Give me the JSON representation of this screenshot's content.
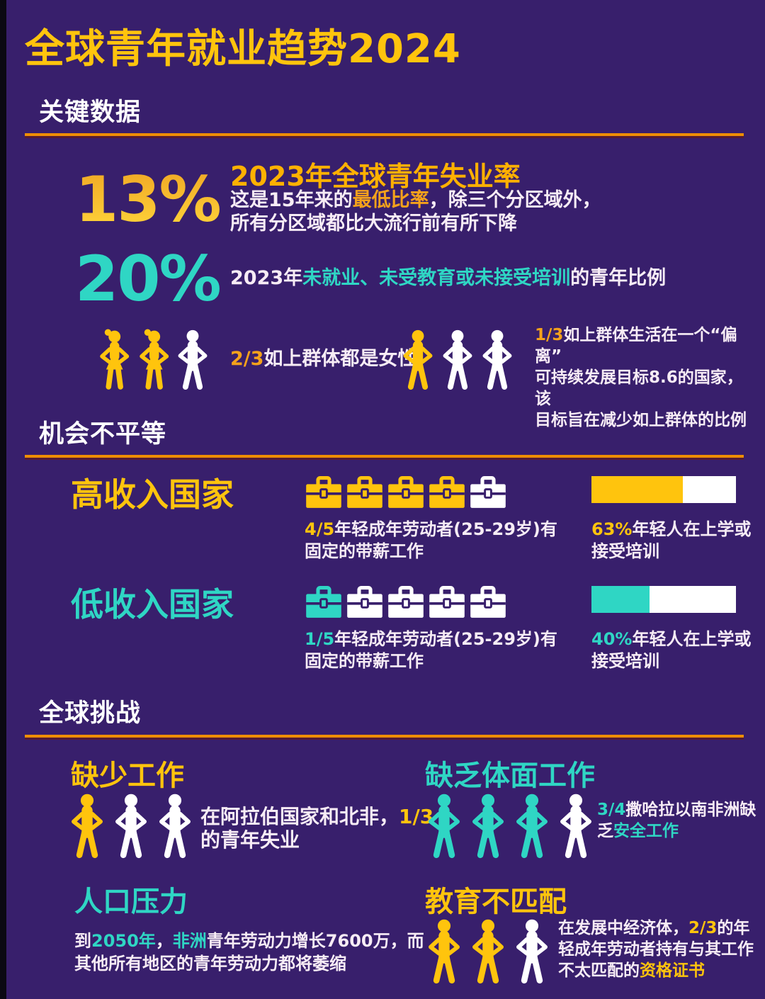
{
  "title": "全球青年就业趋势2024",
  "colors": {
    "background": "#381F6C",
    "gold": "#FFC40D",
    "orange": "#F5A21B",
    "teal": "#2FD6C4",
    "white": "#FFFFFF",
    "rule_orange": "#EE8E04"
  },
  "key_data": {
    "heading": "关键数据",
    "unemployment": {
      "value": "13%",
      "headline": "2023年全球青年失业率",
      "l1_pre": "这是15年来的",
      "l1_hl": "最低比率",
      "l1_post": "，除三个分区域外，",
      "l2": "所有分区域都比大流行前有所下降"
    },
    "neet": {
      "value": "20%",
      "pre": "2023年",
      "hl": "未就业、未受教育或未接受培训",
      "post": "的青年比例"
    },
    "female_row": {
      "hl": "2/3",
      "text": "如上群体都是女性",
      "icons": [
        {
          "glyph": "female",
          "color": "gold"
        },
        {
          "glyph": "female",
          "color": "gold"
        },
        {
          "glyph": "male",
          "color": "white"
        }
      ]
    },
    "sdg_row": {
      "hl": "1/3",
      "l1": "如上群体生活在一个“偏离”",
      "l2": "可持续发展目标8.6的国家，该",
      "l3": "目标旨在减少如上群体的比例",
      "icons": [
        {
          "glyph": "male",
          "color": "gold"
        },
        {
          "glyph": "male",
          "color": "white"
        },
        {
          "glyph": "male",
          "color": "white"
        }
      ]
    }
  },
  "opportunity": {
    "heading": "机会不平等",
    "high_income": {
      "label": "高收入国家",
      "briefcases": [
        {
          "glyph": "briefcase",
          "color": "gold"
        },
        {
          "glyph": "briefcase",
          "color": "gold"
        },
        {
          "glyph": "briefcase",
          "color": "gold"
        },
        {
          "glyph": "briefcase",
          "color": "gold"
        },
        {
          "glyph": "briefcase",
          "color": "white"
        }
      ],
      "caption_hl": "4/5",
      "caption_l1": "年轻成年劳动者(25-29岁)有",
      "caption_l2": "固定的带薪工作",
      "bar": {
        "percent": 63,
        "color": "gold"
      },
      "bar_hl": "63%",
      "bar_l1": "年轻人在上学或",
      "bar_l2": "接受培训"
    },
    "low_income": {
      "label": "低收入国家",
      "briefcases": [
        {
          "glyph": "briefcase",
          "color": "teal"
        },
        {
          "glyph": "briefcase",
          "color": "white"
        },
        {
          "glyph": "briefcase",
          "color": "white"
        },
        {
          "glyph": "briefcase",
          "color": "white"
        },
        {
          "glyph": "briefcase",
          "color": "white"
        }
      ],
      "caption_hl": "1/5",
      "caption_l1": "年轻成年劳动者(25-29岁)有",
      "caption_l2": "固定的带薪工作",
      "bar": {
        "percent": 40,
        "color": "teal"
      },
      "bar_hl": "40%",
      "bar_l1": "年轻人在上学或",
      "bar_l2": "接受培训"
    }
  },
  "challenges": {
    "heading": "全球挑战",
    "lack_of_jobs": {
      "label": "缺少工作",
      "icons": [
        {
          "glyph": "male",
          "color": "gold"
        },
        {
          "glyph": "male",
          "color": "white"
        },
        {
          "glyph": "male",
          "color": "white"
        }
      ],
      "l1_pre": "在阿拉伯国家和北非，",
      "l1_hl": "1/3",
      "l2": "的青年失业"
    },
    "decent_work": {
      "label": "缺乏体面工作",
      "icons": [
        {
          "glyph": "male",
          "color": "teal"
        },
        {
          "glyph": "male",
          "color": "teal"
        },
        {
          "glyph": "male",
          "color": "teal"
        },
        {
          "glyph": "male",
          "color": "white"
        }
      ],
      "l1_hl": "3/4",
      "l1": "撒哈拉以南非洲缺",
      "l2_pre": "乏",
      "l2_hl": "安全工作"
    },
    "population": {
      "label": "人口压力",
      "pre": "到",
      "hl_year": "2050年",
      "comma": "，",
      "hl_region": "非洲",
      "l1_post": "青年劳动力增长7600万，而",
      "l2": "其他所有地区的青年劳动力都将萎缩"
    },
    "education": {
      "label": "教育不匹配",
      "icons": [
        {
          "glyph": "male",
          "color": "gold"
        },
        {
          "glyph": "male",
          "color": "gold"
        },
        {
          "glyph": "male",
          "color": "white"
        }
      ],
      "l1_pre": "在发展中经济体，",
      "l1_hl": "2/3",
      "l1_post": "的年",
      "l2": "轻成年劳动者持有与其工作",
      "l3_pre": "不太匹配的",
      "l3_hl": "资格证书"
    }
  },
  "chart_data": [
    {
      "type": "pictograph",
      "title": "关键数据",
      "items": [
        {
          "label": "2023年全球青年失业率",
          "value": 0.13,
          "display": "13%"
        },
        {
          "label": "2023年未就业、未受教育或未接受培训的青年比例",
          "value": 0.2,
          "display": "20%"
        },
        {
          "label": "如上群体都是女性",
          "value": 0.667,
          "display": "2/3",
          "icons_total": 3,
          "icons_filled": 2
        },
        {
          "label": "如上群体生活在一个偏离可持续发展目标8.6的国家",
          "value": 0.333,
          "display": "1/3",
          "icons_total": 3,
          "icons_filled": 1
        }
      ]
    },
    {
      "type": "bar",
      "title": "机会不平等",
      "categories": [
        "高收入国家",
        "低收入国家"
      ],
      "series": [
        {
          "name": "年轻成年劳动者(25-29岁)有固定的带薪工作",
          "values": [
            0.8,
            0.2
          ],
          "display": [
            "4/5",
            "1/5"
          ]
        },
        {
          "name": "年轻人在上学或接受培训",
          "values": [
            0.63,
            0.4
          ],
          "display": [
            "63%",
            "40%"
          ]
        }
      ],
      "xlim": [
        0,
        1
      ]
    },
    {
      "type": "pictograph",
      "title": "全球挑战",
      "items": [
        {
          "label": "在阿拉伯国家和北非的青年失业",
          "value": 0.333,
          "display": "1/3",
          "icons_total": 3,
          "icons_filled": 1
        },
        {
          "label": "撒哈拉以南非洲缺乏安全工作",
          "value": 0.75,
          "display": "3/4",
          "icons_total": 4,
          "icons_filled": 3
        },
        {
          "label": "到2050年非洲青年劳动力增长",
          "display": "7600万"
        },
        {
          "label": "发展中经济体年轻成年劳动者持有与其工作不太匹配的资格证书",
          "value": 0.667,
          "display": "2/3",
          "icons_total": 3,
          "icons_filled": 2
        }
      ]
    }
  ]
}
